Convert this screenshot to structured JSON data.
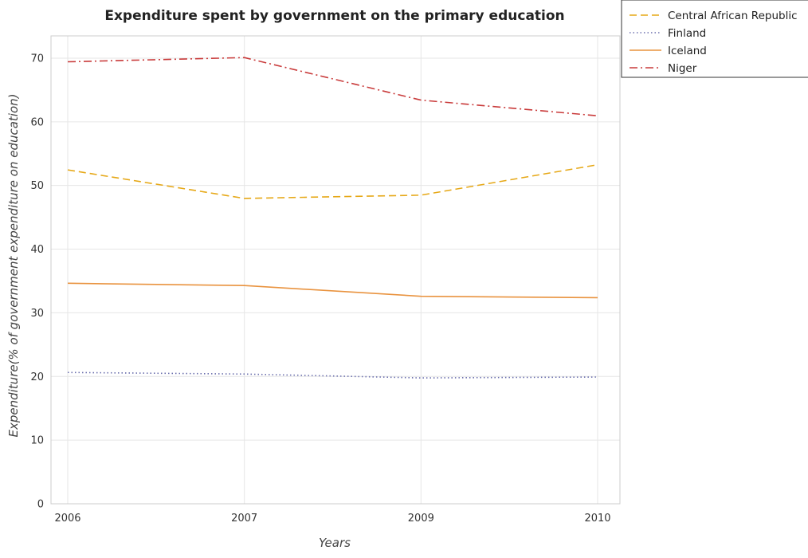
{
  "chart_data": {
    "type": "line",
    "title": "Expenditure spent by government on the primary education",
    "xlabel": "Years",
    "ylabel": "Expenditure(% of government expenditure on education)",
    "categories": [
      "2006",
      "2007",
      "2009",
      "2010"
    ],
    "ylim": [
      0,
      73.5
    ],
    "yticks": [
      0,
      10,
      20,
      30,
      40,
      50,
      60,
      70
    ],
    "grid": true,
    "legend_position": "top-right",
    "series": [
      {
        "name": "Central African Republic",
        "color": "#e6a817",
        "dash": "dashed",
        "values": [
          52.45,
          47.97,
          48.48,
          53.26
        ]
      },
      {
        "name": "Finland",
        "color": "#6b6fad",
        "dash": "dotted",
        "values": [
          20.63,
          20.38,
          19.77,
          19.91
        ]
      },
      {
        "name": "Iceland",
        "color": "#e9933f",
        "dash": "solid",
        "values": [
          34.64,
          34.28,
          32.6,
          32.37
        ]
      },
      {
        "name": "Niger",
        "color": "#c93b3b",
        "dash": "dashdot",
        "values": [
          69.43,
          70.09,
          63.41,
          60.95
        ]
      }
    ]
  }
}
